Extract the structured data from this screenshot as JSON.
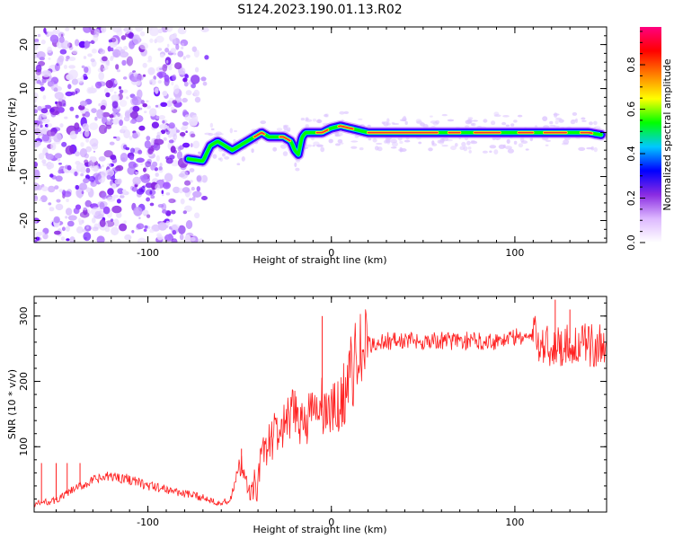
{
  "chart_data": [
    {
      "type": "heatmap",
      "title": "S124.2023.190.01.13.R02",
      "xlabel": "Height of straight line (km)",
      "ylabel": "Frequency (Hz)",
      "xlim": [
        -162,
        150
      ],
      "ylim": [
        -25,
        24
      ],
      "x_ticks": [
        -100,
        0,
        100
      ],
      "y_ticks": [
        -20,
        -10,
        0,
        10,
        20
      ],
      "colorbar": {
        "label": "Normalized spectral amplitude",
        "range": [
          0,
          0.97
        ],
        "ticks": [
          0.0,
          0.2,
          0.4,
          0.6,
          0.8
        ],
        "colors": [
          "#ffffff",
          "#ddb8ff",
          "#8a2be2",
          "#0000ff",
          "#00c8ff",
          "#00ff00",
          "#ffff00",
          "#ff8000",
          "#ff0000",
          "#ff0080"
        ]
      },
      "noise_region": {
        "x": [
          -162,
          -68
        ],
        "y": [
          -25,
          24
        ]
      },
      "trace": {
        "x": [
          -78,
          -70,
          -66,
          -62,
          -58,
          -54,
          -50,
          -46,
          -42,
          -38,
          -34,
          -30,
          -26,
          -22,
          -20,
          -18,
          -16,
          -14,
          -10,
          -5,
          0,
          5,
          10,
          15,
          20,
          30,
          40,
          50,
          60,
          70,
          80,
          90,
          100,
          110,
          120,
          130,
          140,
          147
        ],
        "y": [
          -6,
          -6.5,
          -3,
          -2,
          -3,
          -4,
          -3,
          -2,
          -1,
          0,
          -1,
          -1,
          -1,
          -2,
          -4,
          -5,
          -1,
          0,
          0,
          0,
          1,
          1.5,
          1,
          0.5,
          0,
          0,
          0,
          0,
          0,
          0,
          0,
          0,
          0,
          0,
          0,
          0,
          0,
          -0.5
        ]
      }
    },
    {
      "type": "line",
      "xlabel": "Height of straight line (km)",
      "ylabel": "SNR (10 * v/v)",
      "xlim": [
        -162,
        150
      ],
      "ylim": [
        0,
        330
      ],
      "x_ticks": [
        -100,
        0,
        100
      ],
      "y_ticks": [
        100,
        200,
        300
      ],
      "color": "#ff2020",
      "series": [
        {
          "x": [
            -162,
            -150,
            -140,
            -130,
            -120,
            -110,
            -100,
            -90,
            -80,
            -70,
            -60,
            -55,
            -50,
            -45,
            -40,
            -35,
            -30,
            -25,
            -20,
            -15,
            -10,
            -5,
            0,
            5,
            10,
            15,
            20,
            30,
            40,
            50,
            60,
            70,
            80,
            90,
            100,
            110,
            120,
            130,
            140,
            150
          ],
          "values": [
            12,
            18,
            35,
            48,
            55,
            50,
            40,
            35,
            28,
            22,
            14,
            18,
            75,
            25,
            60,
            105,
            120,
            130,
            150,
            140,
            150,
            160,
            150,
            165,
            210,
            240,
            255,
            262,
            262,
            262,
            262,
            262,
            262,
            262,
            268,
            268,
            252,
            258,
            254,
            256
          ]
        }
      ],
      "spikes": [
        {
          "x": -158,
          "y": 75
        },
        {
          "x": -150,
          "y": 75
        },
        {
          "x": -144,
          "y": 75
        },
        {
          "x": -137,
          "y": 75
        },
        {
          "x": -49,
          "y": 97
        },
        {
          "x": -5,
          "y": 300
        },
        {
          "x": 122,
          "y": 325
        },
        {
          "x": 130,
          "y": 310
        }
      ]
    }
  ]
}
